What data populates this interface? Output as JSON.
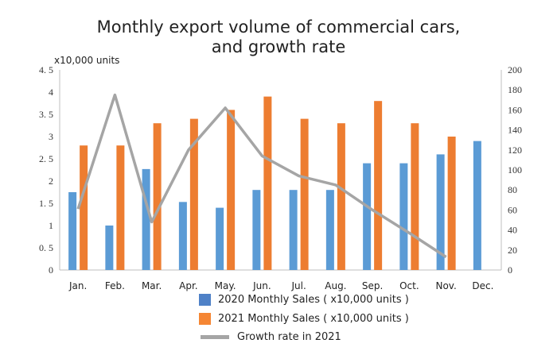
{
  "chart_data": {
    "type": "bar",
    "title": "Monthly export volume of commercial cars, and growth rate",
    "title_lines": [
      "Monthly export volume of commercial cars,",
      "and growth rate"
    ],
    "ylabel": "x10,000 units",
    "categories": [
      "Jan.",
      "Feb.",
      "Mar.",
      "Apr.",
      "May.",
      "Jun.",
      "Jul.",
      "Aug.",
      "Sep.",
      "Oct.",
      "Nov.",
      "Dec."
    ],
    "ylim": [
      0,
      4.5
    ],
    "y2lim": [
      0,
      200
    ],
    "yticks": [
      "0",
      "0. 5",
      "1",
      "1. 5",
      "2",
      "2. 5",
      "3",
      "3. 5",
      "4",
      "4. 5"
    ],
    "y2ticks": [
      "0",
      "20",
      "40",
      "60",
      "80",
      "100",
      "120",
      "140",
      "160",
      "180",
      "200"
    ],
    "series": [
      {
        "name": "2020 Monthly Sales ( x10,000 units )",
        "type": "bar",
        "axis": "left",
        "color": "#5b9bd5",
        "values": [
          1.75,
          1.0,
          2.27,
          1.53,
          1.4,
          1.8,
          1.8,
          1.8,
          2.4,
          2.4,
          2.6,
          2.9
        ]
      },
      {
        "name": "2021 Monthly Sales ( x10,000 units )",
        "type": "bar",
        "axis": "left",
        "color": "#ed7d31",
        "values": [
          2.8,
          2.8,
          3.3,
          3.4,
          3.6,
          3.9,
          3.4,
          3.3,
          3.8,
          3.3,
          3.0,
          null
        ]
      },
      {
        "name": "Growth rate in 2021",
        "type": "line",
        "axis": "right",
        "color": "#a5a5a5",
        "values": [
          61,
          175,
          48,
          120,
          162,
          114,
          94,
          85,
          60,
          37,
          13,
          null
        ]
      }
    ],
    "grid": false,
    "legend": "bottom"
  }
}
